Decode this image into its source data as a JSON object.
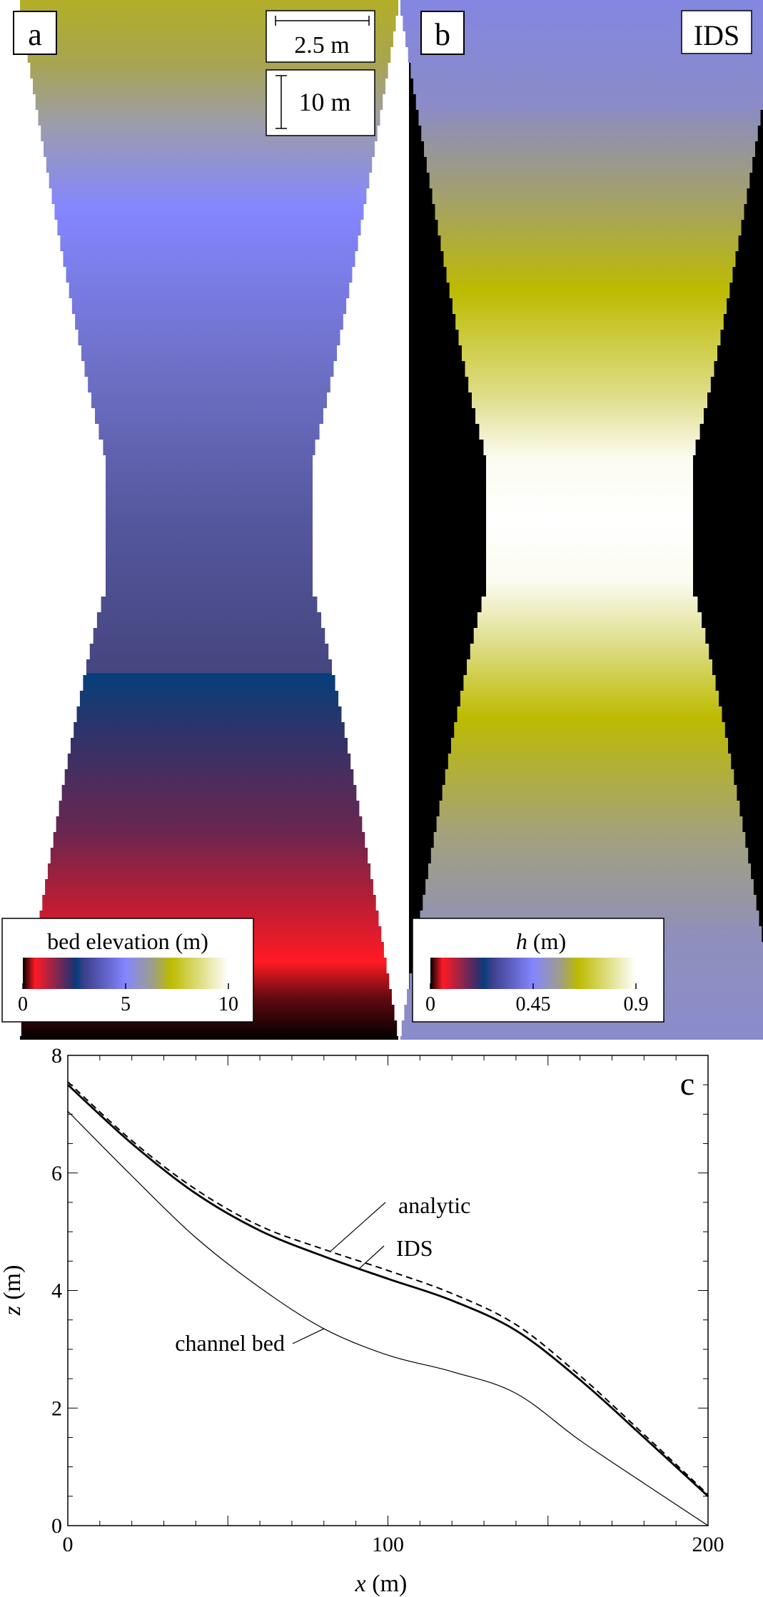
{
  "panels": {
    "a": {
      "letter": "a",
      "scalebar_width": "2.5 m",
      "scalebar_height": "10 m"
    },
    "b": {
      "letter": "b",
      "label": "IDS"
    }
  },
  "colorbars": {
    "a": {
      "title": "bed elevation (m)",
      "ticks": [
        "0",
        "5",
        "10"
      ],
      "range": [
        0,
        10
      ]
    },
    "b": {
      "title_var": "h",
      "title_unit": " (m)",
      "ticks": [
        "0",
        "0.45",
        "0.9"
      ],
      "range": [
        0,
        0.9
      ]
    }
  },
  "colormap_stops": [
    {
      "v": 0.0,
      "color": "#000000"
    },
    {
      "v": 0.06,
      "color": "#ff1a24"
    },
    {
      "v": 0.24,
      "color": "#2b2f6e"
    },
    {
      "v": 0.26,
      "color": "#063f7a"
    },
    {
      "v": 0.3,
      "color": "#3c3f8c"
    },
    {
      "v": 0.5,
      "color": "#8486ff"
    },
    {
      "v": 0.63,
      "color": "#9d9d8c"
    },
    {
      "v": 0.72,
      "color": "#bdbb00"
    },
    {
      "v": 1.0,
      "color": "#ffffff"
    }
  ],
  "chart_data": {
    "type": "line",
    "panel_letter": "c",
    "xlabel_var": "x",
    "xlabel_unit": " (m)",
    "ylabel_var": "z",
    "ylabel_unit": " (m)",
    "xlim": [
      0,
      200
    ],
    "ylim": [
      0,
      8
    ],
    "x_ticks": [
      "0",
      "100",
      "200"
    ],
    "y_ticks": [
      "0",
      "2",
      "4",
      "6",
      "8"
    ],
    "grid": false,
    "annotations": [
      {
        "text": "analytic",
        "series": "analytic"
      },
      {
        "text": "IDS",
        "series": "IDS"
      },
      {
        "text": "channel bed",
        "series": "channel bed"
      }
    ],
    "series": [
      {
        "name": "analytic",
        "style": "dashed",
        "x": [
          0,
          20,
          40,
          60,
          80,
          100,
          120,
          140,
          160,
          180,
          200
        ],
        "y": [
          7.55,
          6.55,
          5.72,
          5.1,
          4.7,
          4.34,
          3.95,
          3.42,
          2.55,
          1.55,
          0.53
        ]
      },
      {
        "name": "IDS",
        "style": "solid-thick",
        "x": [
          0,
          20,
          40,
          60,
          80,
          100,
          120,
          140,
          160,
          180,
          200
        ],
        "y": [
          7.5,
          6.5,
          5.65,
          5.02,
          4.58,
          4.2,
          3.83,
          3.32,
          2.48,
          1.5,
          0.5
        ]
      },
      {
        "name": "channel bed",
        "style": "solid-thin",
        "x": [
          0,
          20,
          40,
          60,
          80,
          100,
          120,
          140,
          160,
          180,
          200
        ],
        "y": [
          7.05,
          5.95,
          4.9,
          4.05,
          3.35,
          2.9,
          2.62,
          2.25,
          1.45,
          0.72,
          0.0
        ]
      }
    ]
  }
}
